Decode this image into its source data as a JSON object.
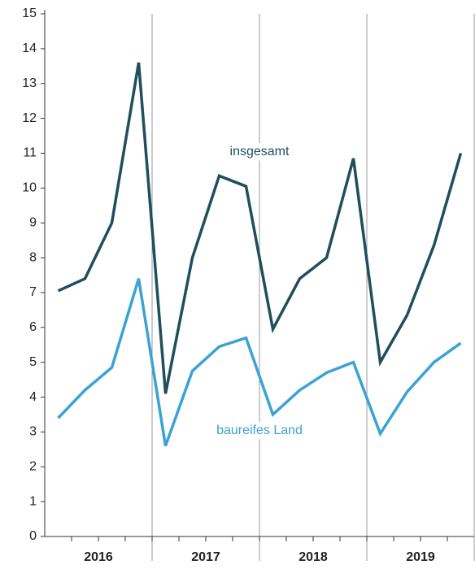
{
  "chart_data": {
    "type": "line",
    "categories": [
      null,
      null,
      null,
      null,
      null,
      null,
      null,
      null,
      null,
      null,
      null,
      null,
      null,
      null,
      null,
      null
    ],
    "x_groups": [
      "2016",
      "2017",
      "2018",
      "2019"
    ],
    "series": [
      {
        "name": "insgesamt",
        "color": "#1f4f5c",
        "values": [
          7.05,
          7.4,
          9.0,
          13.6,
          4.1,
          8.0,
          10.35,
          10.05,
          5.95,
          7.4,
          8.0,
          10.85,
          5.0,
          6.35,
          8.35,
          11.0
        ]
      },
      {
        "name": "baureifes Land",
        "color": "#3aa3d4",
        "values": [
          3.4,
          4.2,
          4.85,
          7.4,
          2.6,
          4.75,
          5.45,
          5.7,
          3.5,
          4.2,
          4.7,
          5.0,
          2.95,
          4.15,
          5.0,
          5.55
        ]
      }
    ],
    "ylim": [
      0,
      15
    ],
    "yticks": [
      0,
      1,
      2,
      3,
      4,
      5,
      6,
      7,
      8,
      9,
      10,
      11,
      12,
      13,
      14,
      15
    ],
    "grid": "x-groups"
  }
}
